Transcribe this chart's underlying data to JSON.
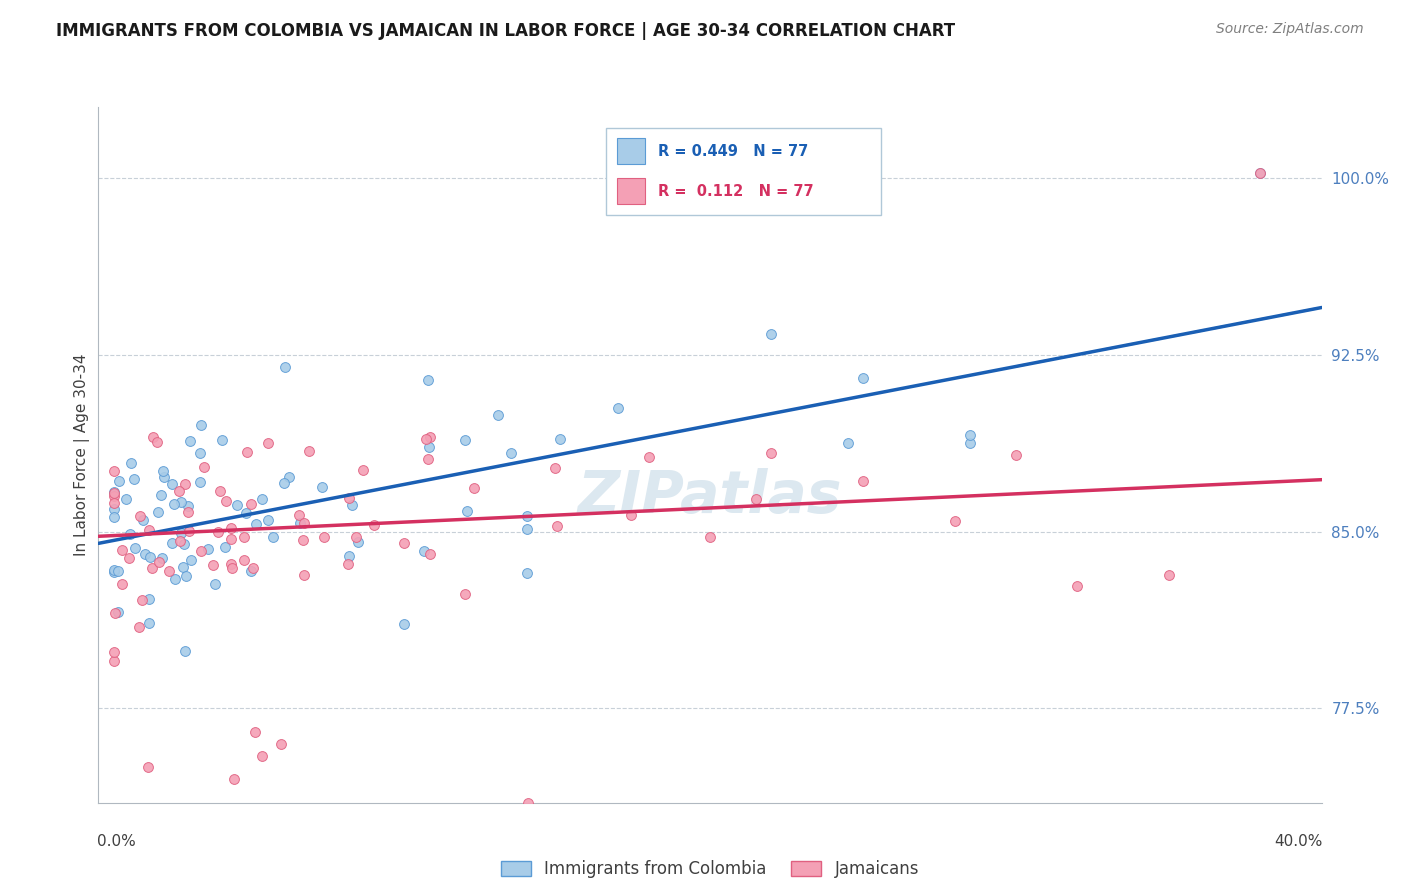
{
  "title": "IMMIGRANTS FROM COLOMBIA VS JAMAICAN IN LABOR FORCE | AGE 30-34 CORRELATION CHART",
  "source": "Source: ZipAtlas.com",
  "ylabel": "In Labor Force | Age 30-34",
  "ytick_vals": [
    0.775,
    0.85,
    0.925,
    1.0
  ],
  "ytick_labels": [
    "77.5%",
    "85.0%",
    "92.5%",
    "100.0%"
  ],
  "yaxis_color": "#4d7fbe",
  "xmin": 0.0,
  "xmax": 0.4,
  "ymin": 0.735,
  "ymax": 1.03,
  "colombia_color": "#a8cce8",
  "colombia_edge": "#5b9bd5",
  "jamaica_color": "#f4a0b5",
  "jamaica_edge": "#e06080",
  "colombia_line_color": "#1a5fb4",
  "jamaica_line_color": "#d43060",
  "dashed_line_color": "#a0c0e0",
  "grid_color": "#c8d0d8",
  "watermark": "ZIPatlas",
  "watermark_color": "#dce8f0",
  "stats_r1_color": "#1a5fb4",
  "stats_r2_color": "#d43060",
  "title_fontsize": 12,
  "source_fontsize": 10,
  "ytick_fontsize": 11,
  "ylabel_fontsize": 11
}
